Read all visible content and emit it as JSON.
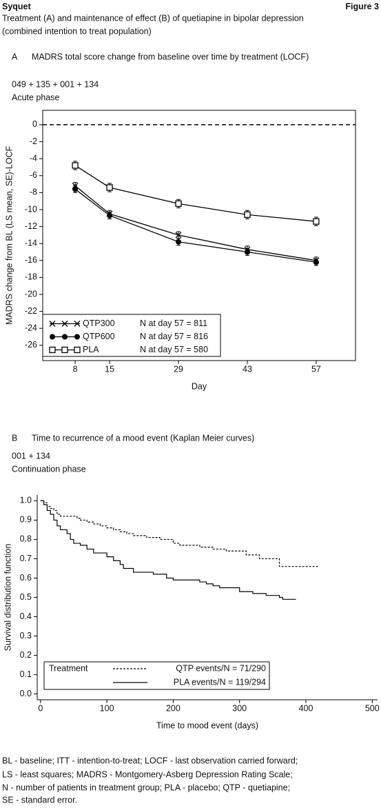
{
  "header": {
    "left": "Syquet",
    "right": "Figure 3",
    "title_lines": [
      "Treatment (A) and maintenance of effect (B) of quetiapine in bipolar depression",
      "(combined intention to treat population)"
    ]
  },
  "chart_data": [
    {
      "type": "line",
      "panel": "A",
      "title": "MADRS total score change from baseline over time by treatment (LOCF)",
      "codes": "049 + 135 + 001 + 134",
      "phase": "Acute phase",
      "xlabel": "Day",
      "ylabel": "MADRS change from BL (LS mean, SE)-LOCF",
      "x": [
        8,
        15,
        29,
        43,
        57
      ],
      "xlim": [
        1.4,
        65
      ],
      "xticks": [
        8,
        15,
        29,
        43,
        57
      ],
      "ylim": [
        -27.8,
        1.7
      ],
      "yticks": [
        0,
        -2,
        -4,
        -6,
        -8,
        -10,
        -12,
        -14,
        -16,
        -18,
        -20,
        -22,
        -24,
        -26
      ],
      "reference_line": 0,
      "legend": "lower left",
      "series": [
        {
          "name": "QTP300",
          "annotation": "N at day 57 = 811",
          "color": "#000000",
          "marker": "x",
          "values": [
            -7.2,
            -10.5,
            -13.0,
            -14.7,
            -16.0
          ],
          "errors": [
            0.4,
            0.4,
            0.4,
            0.4,
            0.4
          ]
        },
        {
          "name": "QTP600",
          "annotation": "N at day 57 = 816",
          "color": "#000000",
          "marker": "filled-circle",
          "values": [
            -7.6,
            -10.7,
            -13.8,
            -15.0,
            -16.2
          ],
          "errors": [
            0.4,
            0.4,
            0.4,
            0.4,
            0.4
          ]
        },
        {
          "name": "PLA",
          "annotation": "N at day 57 = 580",
          "color": "#000000",
          "marker": "open-square",
          "values": [
            -4.8,
            -7.4,
            -9.3,
            -10.6,
            -11.4
          ],
          "errors": [
            0.5,
            0.5,
            0.5,
            0.5,
            0.5
          ]
        }
      ]
    },
    {
      "type": "step",
      "panel": "B",
      "title": "Time to recurrence of a mood event (Kaplan Meier curves)",
      "codes": "001 + 134",
      "phase": "Continuation phase",
      "xlabel": "Time to mood event (days)",
      "ylabel": "Survival distribution function",
      "xlim": [
        -5,
        508
      ],
      "xticks": [
        0,
        100,
        200,
        300,
        400,
        500
      ],
      "ylim": [
        -0.03,
        1.03
      ],
      "yticks": [
        {
          "value": 1,
          "label": "1.0"
        },
        {
          "value": 0.9,
          "label": "0.9"
        },
        {
          "value": 0.8,
          "label": "0.8"
        },
        {
          "value": 0.7,
          "label": "0.7"
        },
        {
          "value": 0.6,
          "label": "0.6"
        },
        {
          "value": 0.5,
          "label": "0.5"
        },
        {
          "value": 0.4,
          "label": "0.4"
        },
        {
          "value": 0.3,
          "label": "0.3"
        },
        {
          "value": 0.2,
          "label": "0.2"
        },
        {
          "value": 0.1,
          "label": "0.1"
        },
        {
          "value": 0,
          "label": "0.0"
        }
      ],
      "legend": "lower left",
      "legend_title": "Treatment",
      "series": [
        {
          "name": "QTP events/N = 71/290",
          "color": "#000000",
          "dash": true,
          "x": [
            0,
            5,
            10,
            15,
            20,
            25,
            30,
            50,
            55,
            60,
            70,
            80,
            90,
            100,
            110,
            120,
            130,
            140,
            160,
            180,
            200,
            210,
            240,
            260,
            280,
            300,
            310,
            330,
            360,
            420
          ],
          "values": [
            1.0,
            0.99,
            0.97,
            0.96,
            0.95,
            0.93,
            0.92,
            0.92,
            0.91,
            0.9,
            0.89,
            0.88,
            0.87,
            0.86,
            0.85,
            0.84,
            0.83,
            0.82,
            0.81,
            0.8,
            0.78,
            0.77,
            0.76,
            0.75,
            0.74,
            0.74,
            0.72,
            0.7,
            0.66,
            0.66
          ]
        },
        {
          "name": "PLA events/N = 119/294",
          "color": "#000000",
          "dash": false,
          "x": [
            0,
            5,
            10,
            15,
            20,
            25,
            30,
            40,
            45,
            50,
            60,
            70,
            80,
            100,
            110,
            120,
            125,
            140,
            170,
            190,
            200,
            240,
            250,
            260,
            270,
            290,
            300,
            320,
            340,
            360,
            365,
            385
          ],
          "values": [
            1.0,
            0.98,
            0.95,
            0.93,
            0.9,
            0.87,
            0.85,
            0.83,
            0.8,
            0.78,
            0.77,
            0.75,
            0.73,
            0.71,
            0.69,
            0.67,
            0.65,
            0.63,
            0.62,
            0.6,
            0.59,
            0.58,
            0.57,
            0.56,
            0.55,
            0.55,
            0.53,
            0.52,
            0.51,
            0.5,
            0.49,
            0.49
          ]
        }
      ]
    }
  ],
  "footnote": [
    "BL - baseline; ITT - intention-to-treat; LOCF - last observation carried forward;",
    "LS - least squares; MADRS - Montgomery-Asberg Depression Rating Scale;",
    "N - number of patients in treatment group; PLA - placebo; QTP - quetiapine;",
    "SE - standard error."
  ]
}
